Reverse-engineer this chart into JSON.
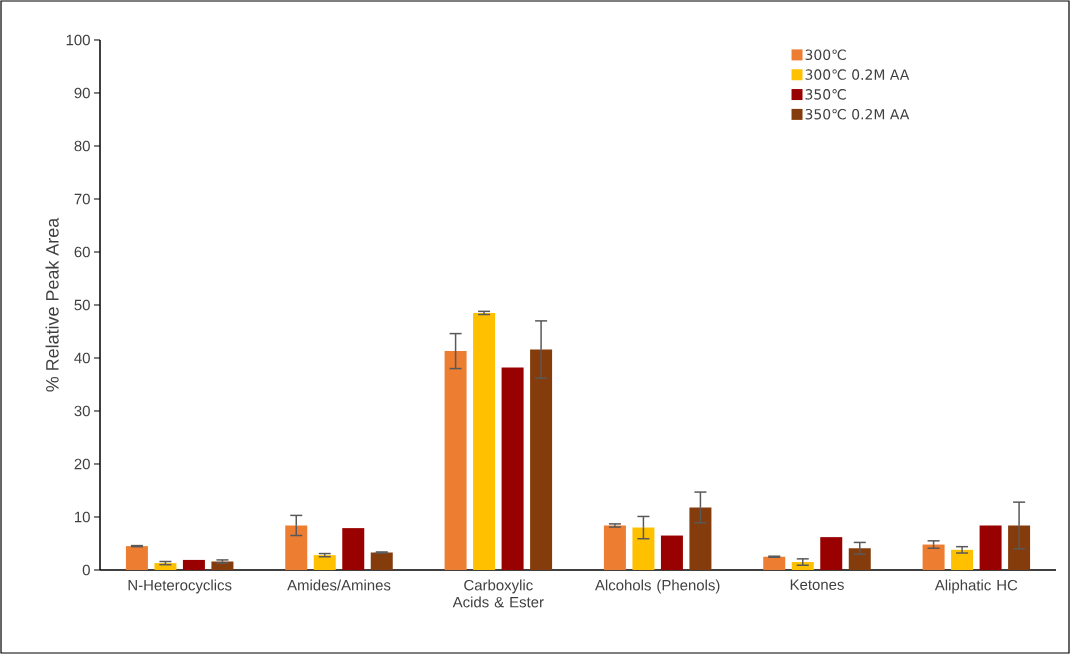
{
  "chart_data": {
    "type": "bar",
    "ylabel": "% Relative Peak Area",
    "categories": [
      "N-Heterocyclics",
      "Amides/Amines",
      "Carboxylic Acids & Ester",
      "Alcohols (Phenols)",
      "Ketones",
      "Aliphatic HC"
    ],
    "series": [
      {
        "name": "300℃",
        "color": "#ed7d31",
        "values": [
          4.5,
          8.4,
          41.3,
          8.4,
          2.5,
          4.8
        ],
        "errors": [
          0.1,
          1.9,
          3.3,
          0.3,
          0.1,
          0.7
        ]
      },
      {
        "name": "300℃  0.2M AA",
        "color": "#ffc000",
        "values": [
          1.3,
          2.8,
          48.5,
          8.0,
          1.5,
          3.8
        ],
        "errors": [
          0.3,
          0.3,
          0.3,
          2.1,
          0.6,
          0.6
        ]
      },
      {
        "name": "350℃",
        "color": "#990000",
        "values": [
          1.9,
          7.9,
          38.2,
          6.5,
          6.2,
          8.4
        ]
      },
      {
        "name": "350℃ 0.2M AA",
        "color": "#843c0c",
        "values": [
          1.6,
          3.3,
          41.6,
          11.8,
          4.1,
          8.4
        ],
        "errors": [
          0.3,
          0.1,
          5.4,
          2.9,
          1.1,
          4.4
        ]
      }
    ],
    "ylim": [
      0,
      100
    ],
    "yticks": [
      0,
      10,
      20,
      30,
      40,
      50,
      60,
      70,
      80,
      90,
      100
    ],
    "grid": false,
    "legend": "top right"
  }
}
